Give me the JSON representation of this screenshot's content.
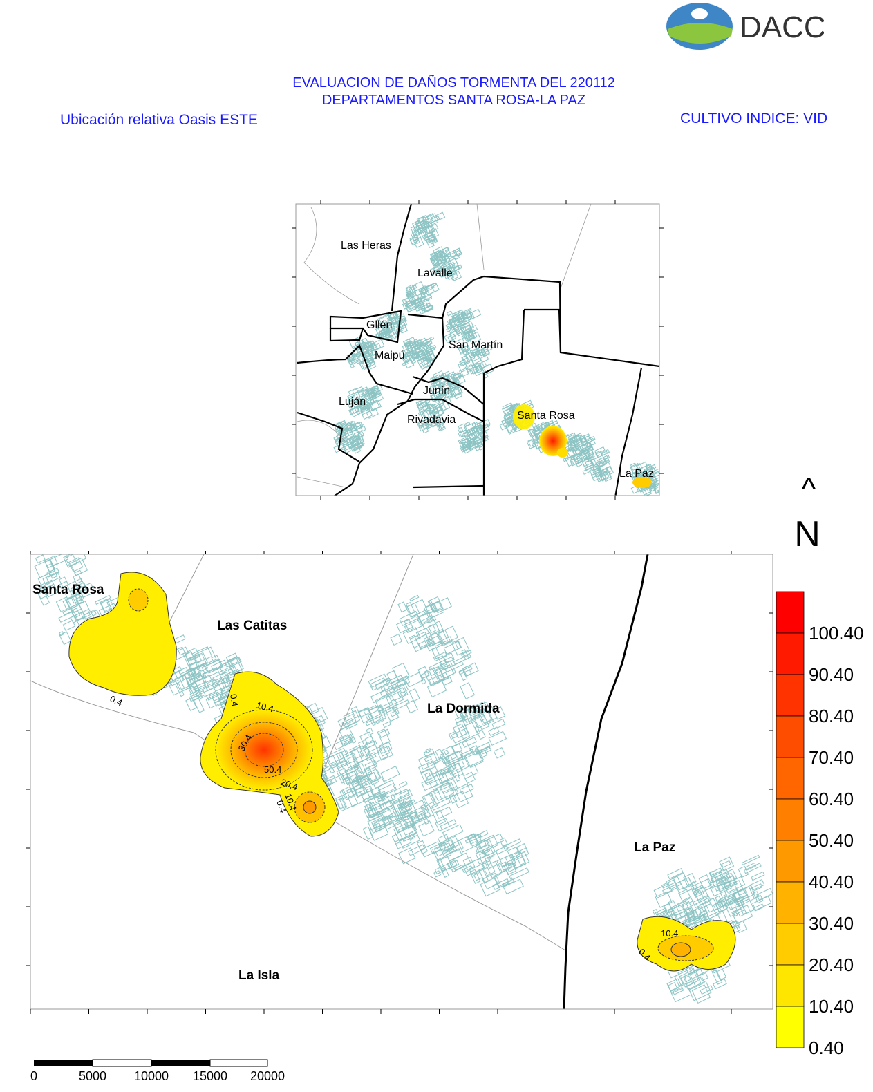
{
  "logo": {
    "text": "DACC",
    "colors": {
      "sky": "#3f86c6",
      "field": "#8cc63f"
    }
  },
  "header": {
    "title_line1": "EVALUACION DE DAÑOS TORMENTA DEL 220112",
    "title_line2": "DEPARTAMENTOS SANTA ROSA-LA PAZ",
    "subtitle_left": "Ubicación relativa Oasis ESTE",
    "subtitle_right": "CULTIVO INDICE: VID"
  },
  "inset_map": {
    "labels": [
      "Las Heras",
      "Lavalle",
      "Gllén",
      "Maipú",
      "San Martín",
      "Junín",
      "Luján",
      "Rivadavia",
      "Santa Rosa",
      "La Paz"
    ]
  },
  "main_map": {
    "labels": [
      "Santa Rosa",
      "Las Catitas",
      "La Dormida",
      "La Paz",
      "La Isla"
    ],
    "contour_labels": [
      "0.4",
      "10.4",
      "30.4",
      "20.4",
      "10.4",
      "0.4",
      "10.4",
      "0.4",
      "0.4",
      "50.4"
    ]
  },
  "north_arrow": {
    "symbol": "^",
    "letter": "N"
  },
  "legend": {
    "labels": [
      "100.40",
      "90.40",
      "80.40",
      "70.40",
      "60.40",
      "50.40",
      "40.40",
      "30.40",
      "20.40",
      "10.40",
      "0.40"
    ],
    "colors": [
      "#ff0000",
      "#ff1a00",
      "#ff3300",
      "#ff4d00",
      "#ff6600",
      "#ff8000",
      "#ff9900",
      "#ffb300",
      "#ffcc00",
      "#ffe600",
      "#ffff00"
    ]
  },
  "scale_bar": {
    "labels": [
      "0",
      "5000",
      "10000",
      "15000",
      "20000"
    ]
  },
  "colors": {
    "title": "#1a1aff",
    "parcels": "#8cc4c4",
    "boundary": "#000000"
  }
}
